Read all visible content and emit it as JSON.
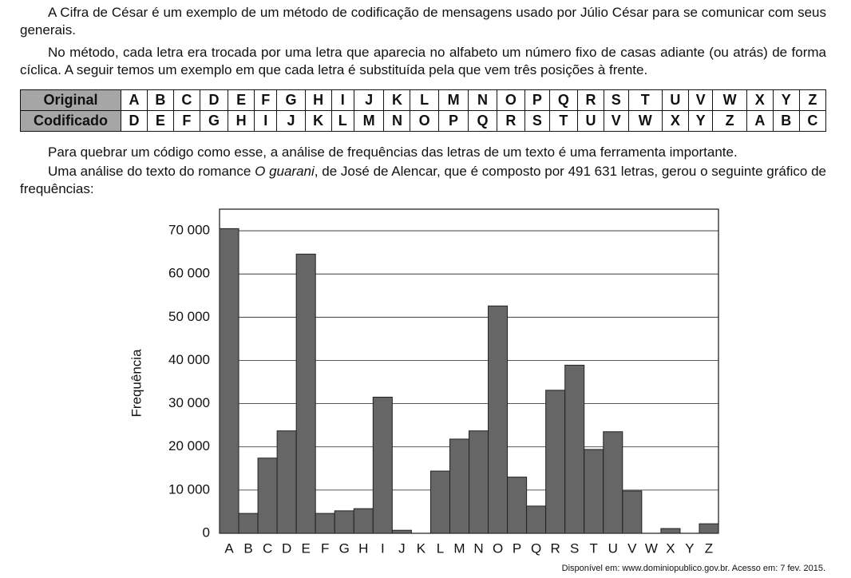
{
  "paragraphs": [
    "A Cifra de César é um exemplo de um método de codificação de mensagens usado por Júlio César para se comunicar com seus generais.",
    "No método, cada letra era trocada por uma letra que aparecia no alfabeto um número fixo de casas adiante (ou atrás) de forma cíclica. A seguir temos um exemplo em que cada letra é substituída pela que vem três posições à frente."
  ],
  "table": {
    "rows": [
      [
        "Original",
        "A",
        "B",
        "C",
        "D",
        "E",
        "F",
        "G",
        "H",
        "I",
        "J",
        "K",
        "L",
        "M",
        "N",
        "O",
        "P",
        "Q",
        "R",
        "S",
        "T",
        "U",
        "V",
        "W",
        "X",
        "Y",
        "Z"
      ],
      [
        "Codificado",
        "D",
        "E",
        "F",
        "G",
        "H",
        "I",
        "J",
        "K",
        "L",
        "M",
        "N",
        "O",
        "P",
        "Q",
        "R",
        "S",
        "T",
        "U",
        "V",
        "W",
        "X",
        "Y",
        "Z",
        "A",
        "B",
        "C"
      ]
    ]
  },
  "paragraph3": "Para quebrar um código como esse, a análise de frequências das letras de um texto é uma ferramenta importante.",
  "paragraph4": {
    "before": "Uma análise do texto do romance ",
    "italic": "O guarani",
    "after": ", de José de Alencar, que é composto por 491 631 letras, gerou o seguinte gráfico de frequências:"
  },
  "chart_data": {
    "type": "bar",
    "y_label": "Frequência",
    "categories": [
      "A",
      "B",
      "C",
      "D",
      "E",
      "F",
      "G",
      "H",
      "I",
      "J",
      "K",
      "L",
      "M",
      "N",
      "O",
      "P",
      "Q",
      "R",
      "S",
      "T",
      "U",
      "V",
      "W",
      "X",
      "Y",
      "Z"
    ],
    "values": [
      70500,
      4600,
      17400,
      23700,
      64600,
      4600,
      5200,
      5700,
      31500,
      700,
      0,
      14400,
      21800,
      23700,
      52600,
      13000,
      6300,
      33100,
      38900,
      19400,
      23500,
      9800,
      0,
      1100,
      0,
      2200
    ],
    "color": "#666666",
    "ylim": [
      0,
      75000
    ],
    "yticks": [
      0,
      {
        "value": 10000,
        "label": "10 000"
      },
      {
        "value": 20000,
        "label": "20 000"
      },
      {
        "value": 30000,
        "label": "30 000"
      },
      {
        "value": 40000,
        "label": "40 000"
      },
      {
        "value": 50000,
        "label": "50 000"
      },
      {
        "value": 60000,
        "label": "60 000"
      },
      {
        "value": 70000,
        "label": "70 000"
      }
    ],
    "grid": true
  },
  "source": "Disponível em: www.dominiopublico.gov.br. Acesso em: 7 fev. 2015."
}
